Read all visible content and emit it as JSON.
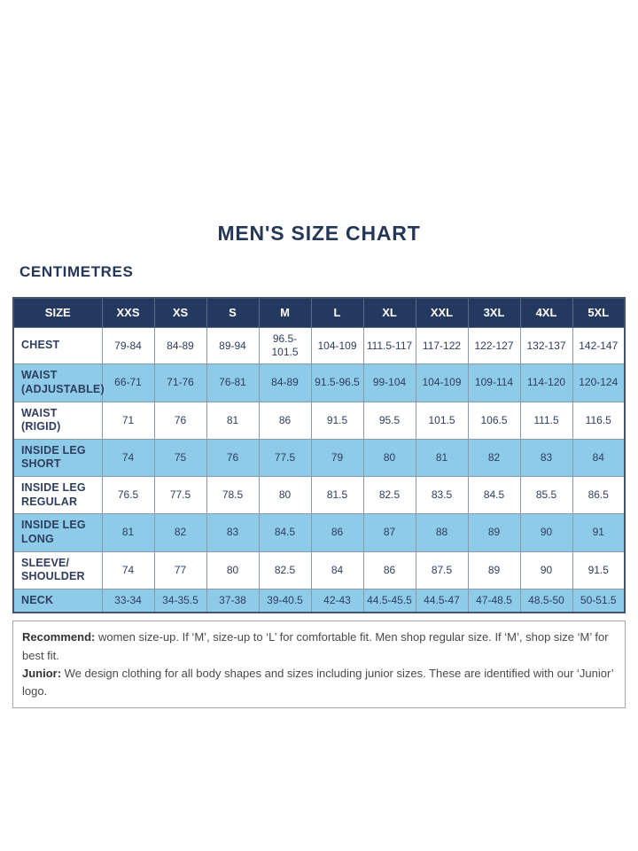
{
  "page": {
    "title": "MEN'S SIZE CHART",
    "unit_label": "CENTIMETRES"
  },
  "chart_data": {
    "type": "table",
    "title": "MEN'S SIZE CHART",
    "unit": "CENTIMETRES",
    "columns": [
      "SIZE",
      "XXS",
      "XS",
      "S",
      "M",
      "L",
      "XL",
      "XXL",
      "3XL",
      "4XL",
      "5XL"
    ],
    "rows": [
      {
        "label": "CHEST",
        "values": [
          "79-84",
          "84-89",
          "89-94",
          "96.5-101.5",
          "104-109",
          "111.5-117",
          "117-122",
          "122-127",
          "132-137",
          "142-147"
        ]
      },
      {
        "label": "WAIST (ADJUSTABLE)",
        "values": [
          "66-71",
          "71-76",
          "76-81",
          "84-89",
          "91.5-96.5",
          "99-104",
          "104-109",
          "109-114",
          "114-120",
          "120-124"
        ]
      },
      {
        "label": "WAIST (RIGID)",
        "values": [
          "71",
          "76",
          "81",
          "86",
          "91.5",
          "95.5",
          "101.5",
          "106.5",
          "111.5",
          "116.5"
        ]
      },
      {
        "label": "INSIDE LEG SHORT",
        "values": [
          "74",
          "75",
          "76",
          "77.5",
          "79",
          "80",
          "81",
          "82",
          "83",
          "84"
        ]
      },
      {
        "label": "INSIDE LEG REGULAR",
        "values": [
          "76.5",
          "77.5",
          "78.5",
          "80",
          "81.5",
          "82.5",
          "83.5",
          "84.5",
          "85.5",
          "86.5"
        ]
      },
      {
        "label": "INSIDE LEG LONG",
        "values": [
          "81",
          "82",
          "83",
          "84.5",
          "86",
          "87",
          "88",
          "89",
          "90",
          "91"
        ]
      },
      {
        "label": "SLEEVE/ SHOULDER",
        "values": [
          "74",
          "77",
          "80",
          "82.5",
          "84",
          "86",
          "87.5",
          "89",
          "90",
          "91.5"
        ]
      },
      {
        "label": "NECK",
        "values": [
          "33-34",
          "34-35.5",
          "37-38",
          "39-40.5",
          "42-43",
          "44.5-45.5",
          "44.5-47",
          "47-48.5",
          "48.5-50",
          "50-51.5"
        ]
      }
    ]
  },
  "footer": {
    "recommend_label": "Recommend:",
    "recommend_text": " women size-up. If ‘M’, size-up to ‘L’ for comfortable fit. Men shop regular size. If ‘M’, shop size ‘M’ for best fit.",
    "junior_label": "Junior:",
    "junior_text": " We design clothing for all body shapes and sizes including junior sizes. These are identified with our ‘Junior’ logo."
  },
  "colors": {
    "header_navy": "#24395f",
    "row_light_blue": "#8ecbe9",
    "title_navy": "#253757",
    "cell_text": "#2e3d5f"
  }
}
